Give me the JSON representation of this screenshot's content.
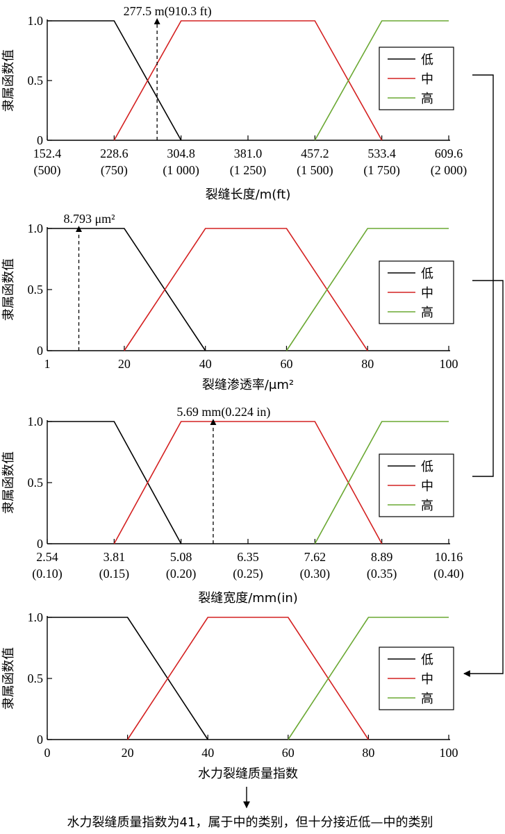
{
  "colors": {
    "low": "#000000",
    "mid": "#d42020",
    "high": "#6aa832",
    "axis": "#000000"
  },
  "legend_labels": [
    "低",
    "中",
    "高"
  ],
  "ylabel": "隶属函数值",
  "ytick_labels": [
    "1.0",
    "0.5",
    "0"
  ],
  "conclusion": "水力裂缝质量指数为41，属于中的类别，但十分接近低—中的类别",
  "chart_data": [
    {
      "type": "line",
      "xlabel": "裂缝长度/m(ft)",
      "xlim": [
        152.4,
        609.6
      ],
      "ylim": [
        0,
        1
      ],
      "x_ticks": [
        152.4,
        228.6,
        304.8,
        381.0,
        457.2,
        533.4,
        609.6
      ],
      "x_tick_labels": [
        "152.4",
        "228.6",
        "304.8",
        "381.0",
        "457.2",
        "533.4",
        "609.6"
      ],
      "x_tick_labels_secondary": [
        "(500)",
        "(750)",
        "(1 000)",
        "(1 250)",
        "(1 500)",
        "(1 750)",
        "(2 000)"
      ],
      "series": [
        {
          "name": "低",
          "x": [
            152.4,
            304.8
          ],
          "y": [
            1,
            0
          ],
          "xs": [
            152.4,
            228.6,
            304.8
          ]
        },
        {
          "name": "中",
          "x": [
            228.6,
            533.4
          ],
          "y": [
            0,
            0
          ],
          "xs": [
            228.6,
            304.8,
            457.2,
            533.4
          ]
        },
        {
          "name": "高",
          "x": [
            457.2,
            609.6
          ],
          "y": [
            0,
            1
          ],
          "xs": [
            457.2,
            533.4,
            609.6
          ]
        }
      ],
      "marker": {
        "x": 277.5,
        "label": "277.5 m(910.3 ft)"
      }
    },
    {
      "type": "line",
      "xlabel": "裂缝渗透率/μm²",
      "xlim": [
        1,
        100
      ],
      "ylim": [
        0,
        1
      ],
      "x_ticks": [
        1,
        20,
        40,
        60,
        80,
        100
      ],
      "x_tick_labels": [
        "1",
        "20",
        "40",
        "60",
        "80",
        "100"
      ],
      "series": [
        {
          "name": "低",
          "xs": [
            1,
            20,
            40
          ]
        },
        {
          "name": "中",
          "xs": [
            20,
            40,
            60,
            80
          ]
        },
        {
          "name": "高",
          "xs": [
            60,
            80,
            100
          ]
        }
      ],
      "marker": {
        "x": 8.793,
        "label": "8.793 μm²"
      }
    },
    {
      "type": "line",
      "xlabel": "裂缝宽度/mm(in)",
      "xlim": [
        2.54,
        10.16
      ],
      "ylim": [
        0,
        1
      ],
      "x_ticks": [
        2.54,
        3.81,
        5.08,
        6.35,
        7.62,
        8.89,
        10.16
      ],
      "x_tick_labels": [
        "2.54",
        "3.81",
        "5.08",
        "6.35",
        "7.62",
        "8.89",
        "10.16"
      ],
      "x_tick_labels_secondary": [
        "(0.10)",
        "(0.15)",
        "(0.20)",
        "(0.25)",
        "(0.30)",
        "(0.35)",
        "(0.40)"
      ],
      "series": [
        {
          "name": "低",
          "xs": [
            2.54,
            3.81,
            5.08
          ]
        },
        {
          "name": "中",
          "xs": [
            3.81,
            5.08,
            7.62,
            8.89
          ]
        },
        {
          "name": "高",
          "xs": [
            7.62,
            8.89,
            10.16
          ]
        }
      ],
      "marker": {
        "x": 5.69,
        "label": "5.69 mm(0.224 in)"
      }
    },
    {
      "type": "line",
      "xlabel": "水力裂缝质量指数",
      "xlim": [
        0,
        100
      ],
      "ylim": [
        0,
        1
      ],
      "x_ticks": [
        0,
        20,
        40,
        60,
        80,
        100
      ],
      "x_tick_labels": [
        "0",
        "20",
        "40",
        "60",
        "80",
        "100"
      ],
      "series": [
        {
          "name": "低",
          "xs": [
            0,
            20,
            40
          ]
        },
        {
          "name": "中",
          "xs": [
            20,
            40,
            60,
            80
          ]
        },
        {
          "name": "高",
          "xs": [
            60,
            80,
            100
          ]
        }
      ]
    }
  ]
}
